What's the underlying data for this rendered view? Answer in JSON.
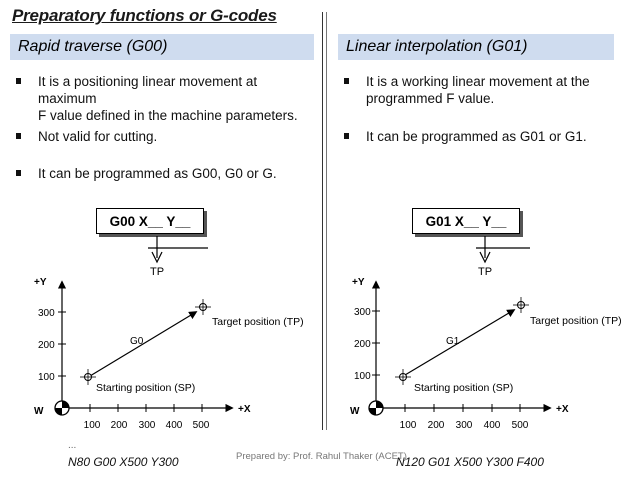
{
  "title": "Preparatory functions or G-codes",
  "left": {
    "header": "Rapid traverse (G00)",
    "bullets": [
      "It is a positioning linear movement at maximum",
      "F value defined in the machine parameters.",
      "Not valid for cutting.",
      "It can be programmed as G00, G0 or G."
    ],
    "code_box": "G00 X__ Y__",
    "tp_label": "TP",
    "y_axis_label": "+Y",
    "x_axis_label": "+X",
    "origin_label": "W",
    "y_ticks": [
      "300",
      "200",
      "100"
    ],
    "x_ticks": [
      "100",
      "200",
      "300",
      "400",
      "500"
    ],
    "path_label": "G0",
    "target_label": "Target position (TP)",
    "start_label": "Starting position (SP)",
    "program": "N80  G00  X500  Y300"
  },
  "right": {
    "header": "Linear interpolation (G01)",
    "bullets": [
      "It is a working linear movement at the",
      "programmed F value.",
      "It can be programmed as G01 or G1."
    ],
    "code_box": "G01 X__ Y__",
    "tp_label": "TP",
    "y_axis_label": "+Y",
    "x_axis_label": "+X",
    "origin_label": "W",
    "y_ticks": [
      "300",
      "200",
      "100"
    ],
    "x_ticks": [
      "100",
      "200",
      "300",
      "400",
      "500"
    ],
    "path_label": "G1",
    "target_label": "Target position (TP)",
    "start_label": "Starting position (SP)",
    "program": "N120  G01  X500  Y300  F400"
  },
  "ellipsis": "...",
  "credit": "Prepared by: Prof. Rahul Thaker (ACET)"
}
